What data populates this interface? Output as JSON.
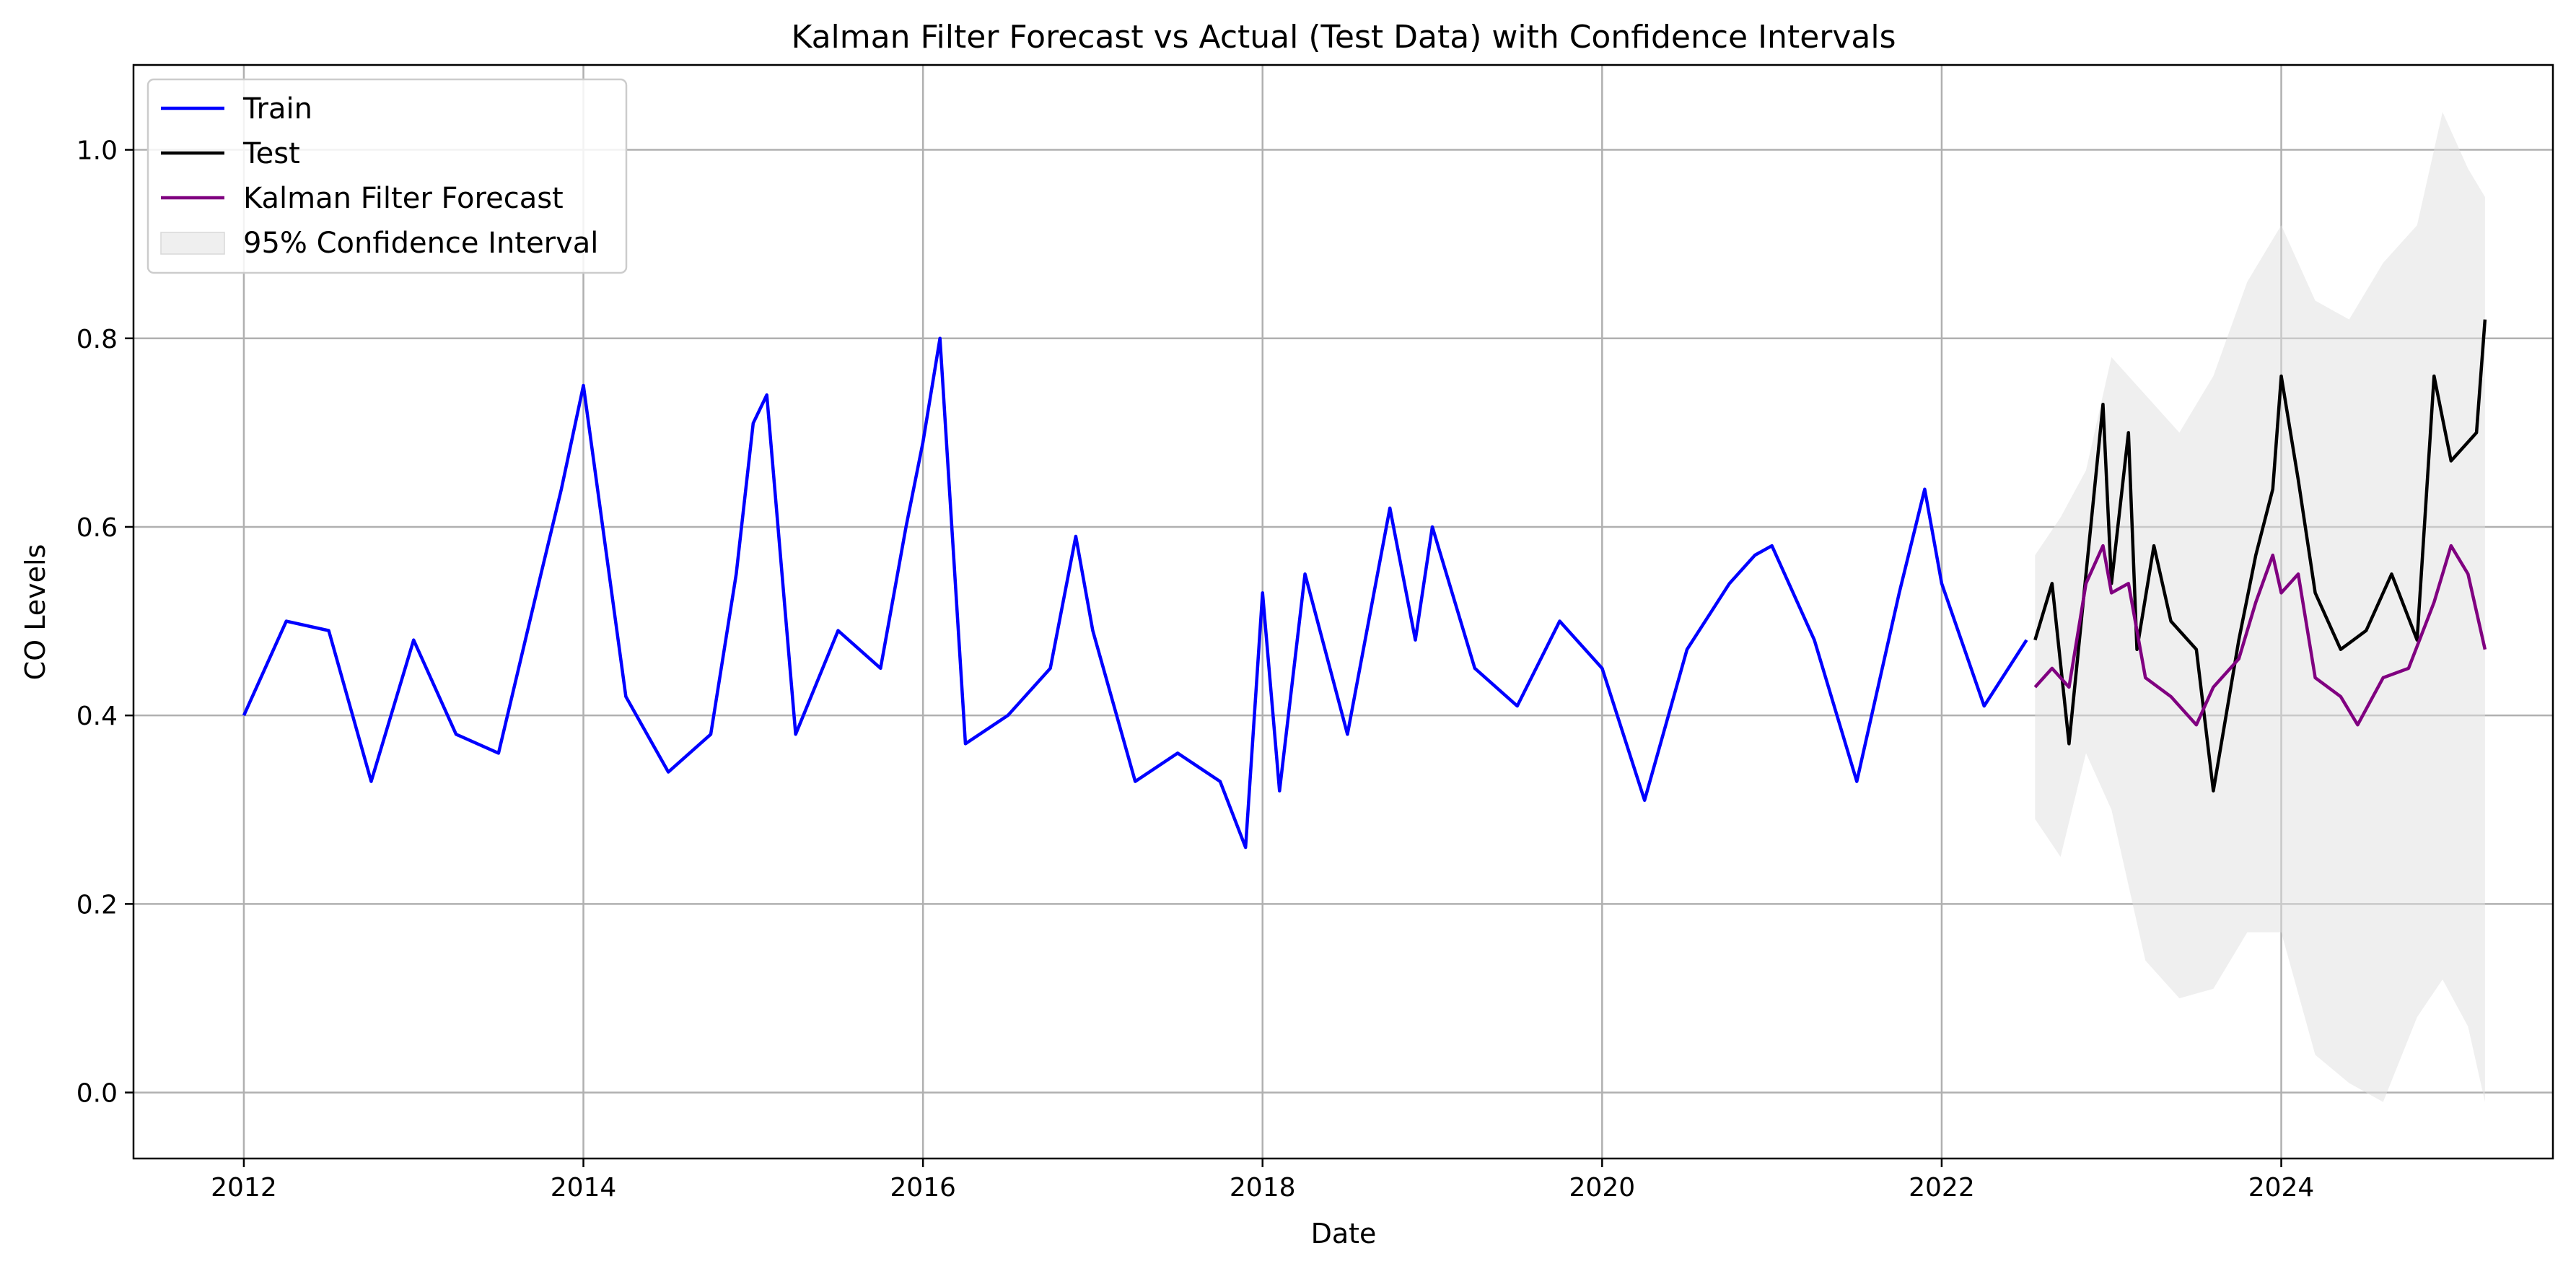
{
  "chart_data": {
    "type": "line",
    "title": "Kalman Filter Forecast vs Actual (Test Data) with Confidence Intervals",
    "xlabel": "Date",
    "ylabel": "CO Levels",
    "x_axis_type": "date",
    "xlim": [
      2011.35,
      2025.6
    ],
    "ylim": [
      -0.07,
      1.09
    ],
    "x_ticks": [
      2012,
      2014,
      2016,
      2018,
      2020,
      2022,
      2024
    ],
    "y_ticks": [
      0.0,
      0.2,
      0.4,
      0.6,
      0.8,
      1.0
    ],
    "x_tick_labels": [
      "2012",
      "2014",
      "2016",
      "2018",
      "2020",
      "2022",
      "2024"
    ],
    "y_tick_labels": [
      "0.0",
      "0.2",
      "0.4",
      "0.6",
      "0.8",
      "1.0"
    ],
    "grid": true,
    "legend": {
      "placement": "top-left",
      "entries": [
        {
          "label": "Train",
          "color": "#0000ff",
          "kind": "line"
        },
        {
          "label": "Test",
          "color": "#000000",
          "kind": "line"
        },
        {
          "label": "Kalman Filter Forecast",
          "color": "#800080",
          "kind": "line"
        },
        {
          "label": "95% Confidence Interval",
          "color": "#e0e0e0",
          "kind": "band"
        }
      ]
    },
    "series": [
      {
        "name": "Train",
        "color": "#0000ff",
        "x": [
          2012.0,
          2012.25,
          2012.5,
          2012.75,
          2013.0,
          2013.25,
          2013.5,
          2013.75,
          2013.87,
          2014.0,
          2014.25,
          2014.5,
          2014.75,
          2014.9,
          2015.0,
          2015.08,
          2015.25,
          2015.5,
          2015.75,
          2015.9,
          2016.0,
          2016.1,
          2016.25,
          2016.5,
          2016.75,
          2016.9,
          2017.0,
          2017.25,
          2017.5,
          2017.75,
          2017.9,
          2018.0,
          2018.1,
          2018.25,
          2018.5,
          2018.75,
          2018.9,
          2019.0,
          2019.25,
          2019.5,
          2019.75,
          2020.0,
          2020.25,
          2020.5,
          2020.75,
          2020.9,
          2021.0,
          2021.25,
          2021.5,
          2021.75,
          2021.9,
          2022.0,
          2022.25,
          2022.5
        ],
        "y": [
          0.4,
          0.5,
          0.49,
          0.33,
          0.48,
          0.38,
          0.36,
          0.55,
          0.64,
          0.75,
          0.42,
          0.34,
          0.38,
          0.55,
          0.71,
          0.74,
          0.38,
          0.49,
          0.45,
          0.6,
          0.69,
          0.8,
          0.37,
          0.4,
          0.45,
          0.59,
          0.49,
          0.33,
          0.36,
          0.33,
          0.26,
          0.53,
          0.32,
          0.55,
          0.38,
          0.62,
          0.48,
          0.6,
          0.45,
          0.41,
          0.5,
          0.45,
          0.31,
          0.47,
          0.54,
          0.57,
          0.58,
          0.48,
          0.33,
          0.53,
          0.64,
          0.54,
          0.41,
          0.48
        ]
      },
      {
        "name": "Test",
        "color": "#000000",
        "x": [
          2022.55,
          2022.65,
          2022.75,
          2022.85,
          2022.95,
          2023.0,
          2023.1,
          2023.15,
          2023.25,
          2023.35,
          2023.5,
          2023.6,
          2023.75,
          2023.85,
          2023.95,
          2024.0,
          2024.1,
          2024.2,
          2024.35,
          2024.5,
          2024.65,
          2024.8,
          2024.9,
          2025.0,
          2025.15,
          2025.2
        ],
        "y": [
          0.48,
          0.54,
          0.37,
          0.55,
          0.73,
          0.54,
          0.7,
          0.47,
          0.58,
          0.5,
          0.47,
          0.32,
          0.48,
          0.57,
          0.64,
          0.76,
          0.65,
          0.53,
          0.47,
          0.49,
          0.55,
          0.48,
          0.76,
          0.67,
          0.7,
          0.82
        ]
      },
      {
        "name": "Kalman Filter Forecast",
        "color": "#800080",
        "x": [
          2022.55,
          2022.65,
          2022.75,
          2022.85,
          2022.95,
          2023.0,
          2023.1,
          2023.2,
          2023.35,
          2023.5,
          2023.6,
          2023.75,
          2023.85,
          2023.95,
          2024.0,
          2024.1,
          2024.2,
          2024.35,
          2024.45,
          2024.6,
          2024.75,
          2024.9,
          2025.0,
          2025.1,
          2025.2
        ],
        "y": [
          0.43,
          0.45,
          0.43,
          0.54,
          0.58,
          0.53,
          0.54,
          0.44,
          0.42,
          0.39,
          0.43,
          0.46,
          0.52,
          0.57,
          0.53,
          0.55,
          0.44,
          0.42,
          0.39,
          0.44,
          0.45,
          0.52,
          0.58,
          0.55,
          0.47
        ]
      }
    ],
    "confidence_band": {
      "name": "95% Confidence Interval",
      "color": "#e0e0e0",
      "x": [
        2022.55,
        2022.7,
        2022.85,
        2023.0,
        2023.2,
        2023.4,
        2023.6,
        2023.8,
        2024.0,
        2024.2,
        2024.4,
        2024.6,
        2024.8,
        2024.95,
        2025.1,
        2025.2
      ],
      "upper": [
        0.57,
        0.61,
        0.66,
        0.78,
        0.74,
        0.7,
        0.76,
        0.86,
        0.92,
        0.84,
        0.82,
        0.88,
        0.92,
        1.04,
        0.98,
        0.95
      ],
      "lower": [
        0.29,
        0.25,
        0.36,
        0.3,
        0.14,
        0.1,
        0.11,
        0.17,
        0.17,
        0.04,
        0.01,
        -0.01,
        0.08,
        0.12,
        0.07,
        -0.01
      ]
    }
  }
}
